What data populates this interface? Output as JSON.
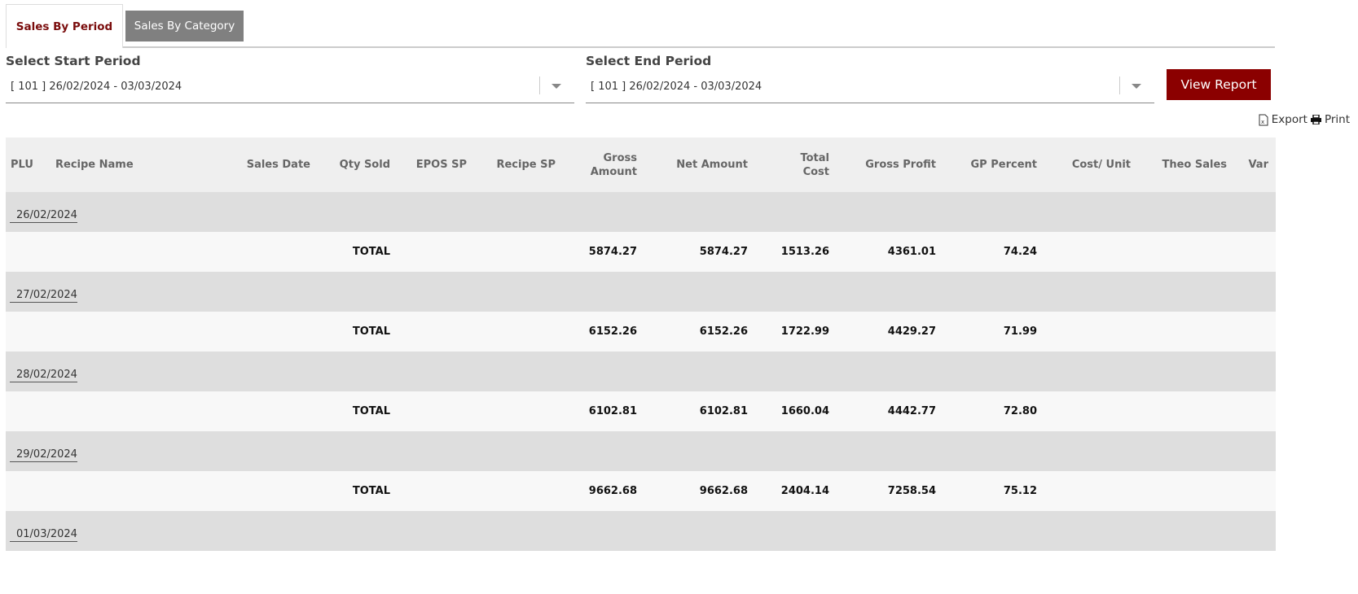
{
  "tabs": [
    "Sales By Period",
    "Sales By Category"
  ],
  "filters": {
    "start_label": "Select Start Period",
    "start_value": "[ 101 ] 26/02/2024 - 03/03/2024",
    "end_label": "Select End Period",
    "end_value": "[ 101 ] 26/02/2024 - 03/03/2024",
    "view_button": "View Report",
    "export": "Export",
    "print": "Print"
  },
  "table": {
    "headers": [
      "PLU",
      "Recipe Name",
      "Sales Date",
      "Qty Sold",
      "EPOS SP",
      "Recipe SP",
      "Gross Amount",
      "Net Amount",
      "Total Cost",
      "Gross Profit",
      "GP Percent",
      "Cost/ Unit",
      "Theo Sales",
      "Var"
    ],
    "groups": [
      {
        "date": "26/02/2024",
        "total_label": "TOTAL",
        "gross": "5874.27",
        "net": "5874.27",
        "cost": "1513.26",
        "profit": "4361.01",
        "gp": "74.24"
      },
      {
        "date": "27/02/2024",
        "total_label": "TOTAL",
        "gross": "6152.26",
        "net": "6152.26",
        "cost": "1722.99",
        "profit": "4429.27",
        "gp": "71.99"
      },
      {
        "date": "28/02/2024",
        "total_label": "TOTAL",
        "gross": "6102.81",
        "net": "6102.81",
        "cost": "1660.04",
        "profit": "4442.77",
        "gp": "72.80"
      },
      {
        "date": "29/02/2024",
        "total_label": "TOTAL",
        "gross": "9662.68",
        "net": "9662.68",
        "cost": "2404.14",
        "profit": "7258.54",
        "gp": "75.12"
      },
      {
        "date": "01/03/2024"
      }
    ]
  }
}
